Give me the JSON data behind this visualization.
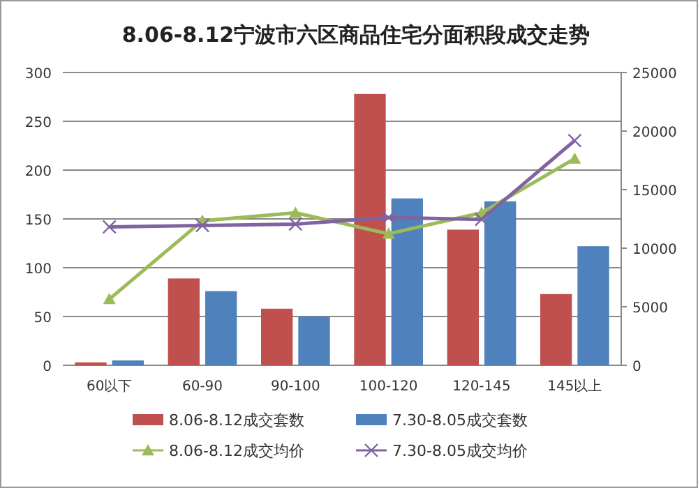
{
  "chart_data": {
    "type": "bar",
    "title": "8.06-8.12宁波市六区商品住宅分面积段成交走势",
    "categories": [
      "60以下",
      "60-90",
      "90-100",
      "100-120",
      "120-145",
      "145以上"
    ],
    "series": [
      {
        "name": "8.06-8.12成交套数",
        "color": "#c0504d",
        "values": [
          3,
          89,
          58,
          278,
          139,
          73
        ]
      },
      {
        "name": "7.30-8.05成交套数",
        "color": "#4f81bd",
        "values": [
          5,
          76,
          50,
          171,
          168,
          122
        ]
      },
      {
        "name": "8.06-8.12成交均价",
        "type": "line",
        "axis": "y2",
        "marker": "triangle",
        "color": "#9bbb59",
        "values": [
          5650,
          12340,
          13020,
          11230,
          13020,
          17640
        ]
      },
      {
        "name": "7.30-8.05成交均价",
        "type": "line",
        "axis": "y2",
        "marker": "cross",
        "color": "#8064a2",
        "values": [
          11820,
          11940,
          12060,
          12620,
          12460,
          19190
        ]
      }
    ],
    "ylim": [
      0,
      300
    ],
    "yticks": [
      0,
      50,
      100,
      150,
      200,
      250,
      300
    ],
    "y2lim": [
      0,
      25000
    ],
    "y2ticks": [
      0,
      5000,
      10000,
      15000,
      20000,
      25000
    ],
    "grid": "y",
    "legend": "bottom"
  }
}
